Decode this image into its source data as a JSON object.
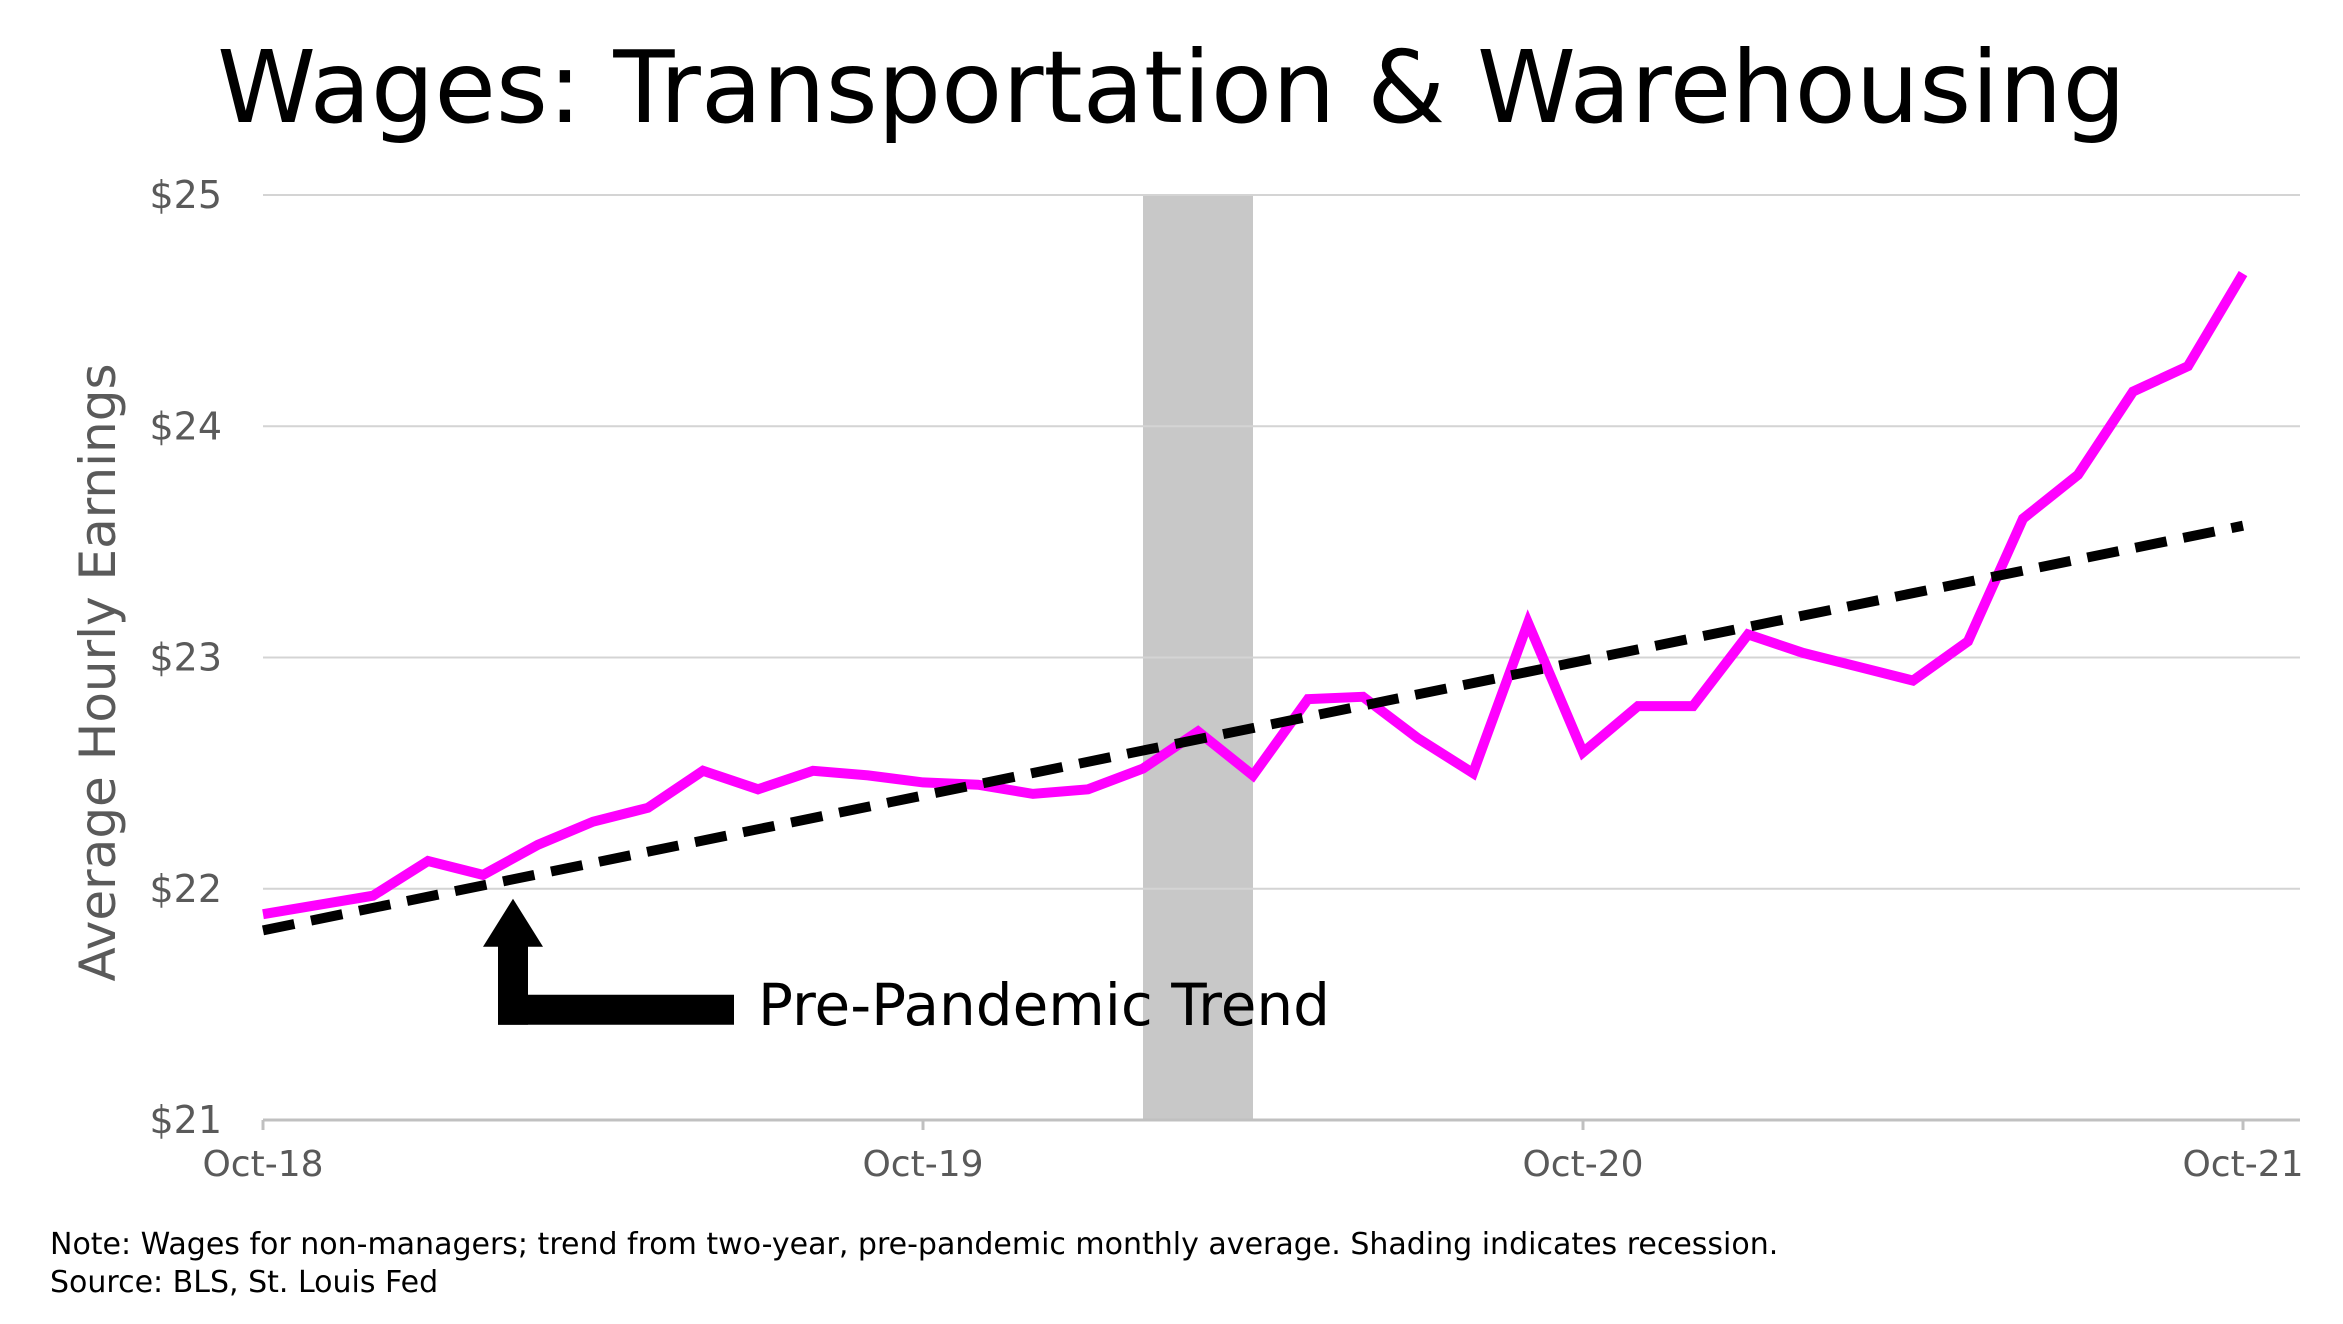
{
  "chart_data": {
    "type": "line",
    "title": "Wages: Transportation & Warehousing",
    "ylabel": "Average Hourly Earnings",
    "xlabel": "",
    "ylim": [
      21,
      25
    ],
    "yticks": [
      21,
      22,
      23,
      24,
      25
    ],
    "ytick_labels": [
      "$21",
      "$22",
      "$23",
      "$24",
      "$25"
    ],
    "xlim": [
      "2018-10",
      "2021-10"
    ],
    "xticks": [
      "2018-10",
      "2019-10",
      "2020-10",
      "2021-10"
    ],
    "xtick_labels": [
      "Oct-18",
      "Oct-19",
      "Oct-20",
      "Oct-21"
    ],
    "grid": "horizontal",
    "recession_shading": [
      "2020-02",
      "2020-04"
    ],
    "series": [
      {
        "color": "#ff00ff",
        "style": "solid",
        "x": [
          "2018-10",
          "2018-11",
          "2018-12",
          "2019-01",
          "2019-02",
          "2019-03",
          "2019-04",
          "2019-05",
          "2019-06",
          "2019-07",
          "2019-08",
          "2019-09",
          "2019-10",
          "2019-11",
          "2019-12",
          "2020-01",
          "2020-02",
          "2020-03",
          "2020-04",
          "2020-05",
          "2020-06",
          "2020-07",
          "2020-08",
          "2020-09",
          "2020-10",
          "2020-11",
          "2020-12",
          "2021-01",
          "2021-02",
          "2021-03",
          "2021-04",
          "2021-05",
          "2021-06",
          "2021-07",
          "2021-08",
          "2021-09",
          "2021-10"
        ],
        "values": [
          21.89,
          21.93,
          21.97,
          22.12,
          22.06,
          22.19,
          22.29,
          22.35,
          22.51,
          22.43,
          22.51,
          22.49,
          22.46,
          22.45,
          22.41,
          22.43,
          22.52,
          22.68,
          22.49,
          22.82,
          22.83,
          22.65,
          22.5,
          23.15,
          22.59,
          22.79,
          22.79,
          23.1,
          23.02,
          22.96,
          22.9,
          23.07,
          23.6,
          23.79,
          24.15,
          24.26,
          24.66
        ]
      },
      {
        "name": "Pre-Pandemic Trend",
        "color": "#000000",
        "style": "dashed",
        "x": [
          "2018-10",
          "2021-10"
        ],
        "values": [
          21.82,
          23.57
        ]
      }
    ],
    "annotations": [
      {
        "text": "Pre-Pandemic Trend",
        "points_to": {
          "x": "2019-02",
          "y": 22.0
        }
      }
    ]
  },
  "notes": {
    "line1": "Note: Wages for non-managers; trend from two-year, pre-pandemic monthly average. Shading indicates recession.",
    "line2": "Source: BLS, St. Louis Fed"
  }
}
